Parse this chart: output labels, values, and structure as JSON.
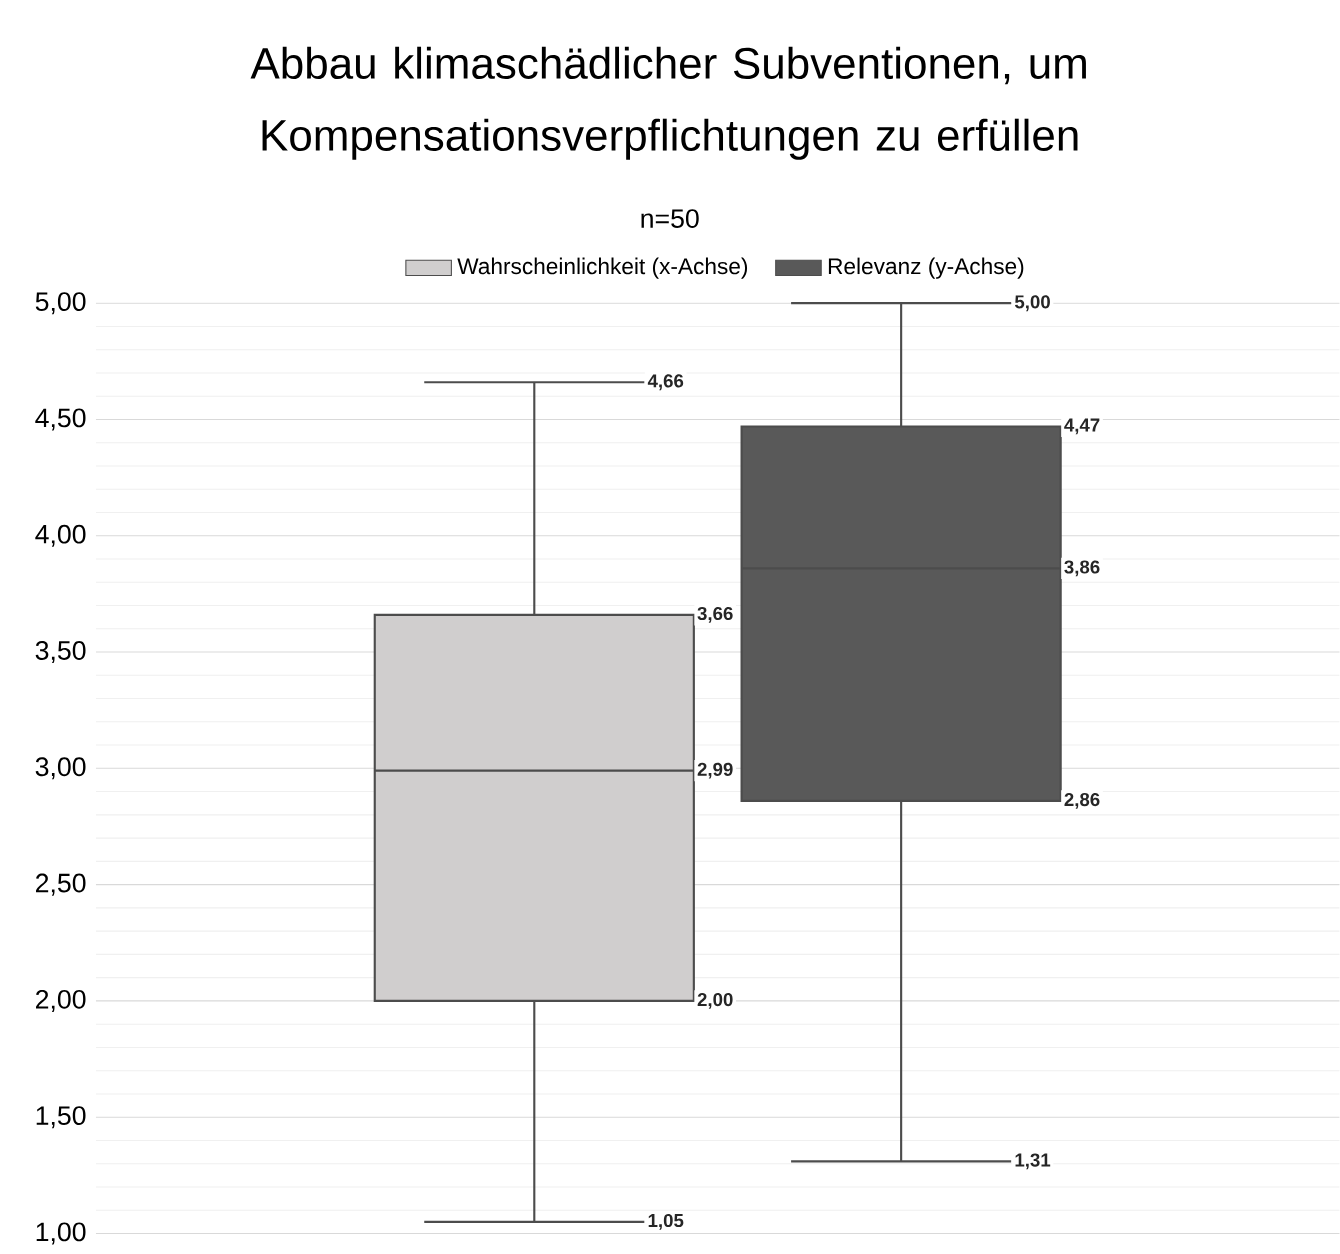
{
  "chart_data": {
    "type": "box",
    "title": "Abbau klimaschädlicher Subventionen, um Kompensationsverpflichtungen zu erfüllen",
    "subtitle": "n=50",
    "categories": [
      null
    ],
    "series": [
      {
        "name": "Wahrscheinlichkeit (x-Achse)",
        "color": "#d0cece",
        "boxes": [
          {
            "low": 1.05,
            "q1": 2.0,
            "median": 2.99,
            "q3": 3.66,
            "high": 4.66
          }
        ]
      },
      {
        "name": "Relevanz (y-Achse)",
        "color": "#595959",
        "boxes": [
          {
            "low": 1.31,
            "q1": 2.86,
            "median": 3.86,
            "q3": 4.47,
            "high": 5.0
          }
        ]
      }
    ],
    "ylim": [
      1,
      5
    ],
    "yticks": [
      {
        "value": 1,
        "label": "1,00"
      },
      {
        "value": 1.5,
        "label": "1,50"
      },
      {
        "value": 2,
        "label": "2,00"
      },
      {
        "value": 2.5,
        "label": "2,50"
      },
      {
        "value": 3,
        "label": "3,00"
      },
      {
        "value": 3.5,
        "label": "3,50"
      },
      {
        "value": 4,
        "label": "4,00"
      },
      {
        "value": 4.5,
        "label": "4,50"
      },
      {
        "value": 5,
        "label": "5,00"
      }
    ],
    "annotations": [
      {
        "text": "1,05",
        "y": 1.05
      },
      {
        "text": "2,00",
        "y": 2.0
      },
      "2,99",
      {
        "text": "3,66",
        "y": 3.66
      },
      {
        "text": "4,66",
        "y": 4.66
      },
      {
        "text": "1,31",
        "y": 1.31
      },
      {
        "text": "2,86",
        "y": 2.86
      },
      "3,86",
      {
        "text": "4,47",
        "y": 4.47
      },
      {
        "text": "5,00",
        "y": 5.0
      }
    ],
    "grid": "y",
    "legend": "top"
  }
}
